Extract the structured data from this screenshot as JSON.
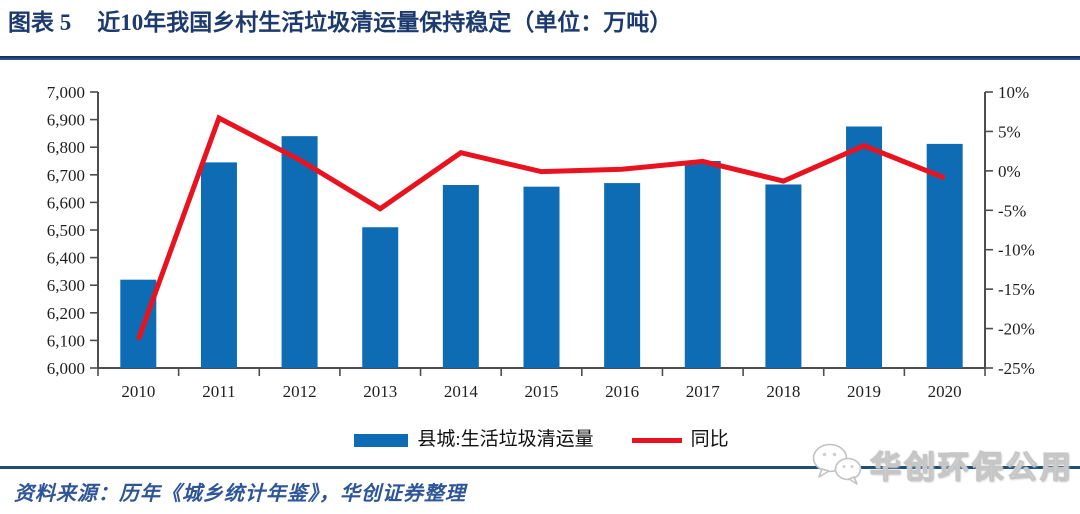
{
  "figure": {
    "label": "图表 5",
    "title": "近10年我国乡村生活垃圾清运量保持稳定（单位：万吨）"
  },
  "chart_data": {
    "type": "combo",
    "categories": [
      "2010",
      "2011",
      "2012",
      "2013",
      "2014",
      "2015",
      "2016",
      "2017",
      "2018",
      "2019",
      "2020"
    ],
    "series": [
      {
        "name": "县城:生活垃圾清运量",
        "type": "bar",
        "axis": "left",
        "color": "#0e6cb5",
        "values": [
          6320,
          6745,
          6840,
          6510,
          6663,
          6657,
          6670,
          6750,
          6665,
          6875,
          6812
        ]
      },
      {
        "name": "同比",
        "type": "line",
        "axis": "right",
        "color": "#e8131f",
        "values": [
          -21.4,
          6.7,
          1.4,
          -4.8,
          2.3,
          -0.1,
          0.2,
          1.2,
          -1.3,
          3.2,
          -0.9
        ]
      }
    ],
    "left_axis": {
      "min": 6000,
      "max": 7000,
      "step": 100,
      "tick_labels": [
        "6,000",
        "6,100",
        "6,200",
        "6,300",
        "6,400",
        "6,500",
        "6,600",
        "6,700",
        "6,800",
        "6,900",
        "7,000"
      ]
    },
    "right_axis": {
      "min": -25,
      "max": 10,
      "step": 5,
      "tick_labels": [
        "-25%",
        "-20%",
        "-15%",
        "-10%",
        "-5%",
        "0%",
        "5%",
        "10%"
      ]
    },
    "grid": false,
    "legend_position": "bottom"
  },
  "legend": {
    "bar_label": "县城:生活垃圾清运量",
    "line_label": "同比"
  },
  "source_note": "资料来源：历年《城乡统计年鉴》，华创证券整理",
  "watermark": {
    "icon": "wechat-icon",
    "text": "华创环保公用"
  },
  "colors": {
    "bar": "#0e6cb5",
    "line": "#e8131f",
    "title": "#1c3a6e",
    "rule": "#1f4e79",
    "source_text": "#2e5597",
    "axis": "#4d4d4d"
  }
}
